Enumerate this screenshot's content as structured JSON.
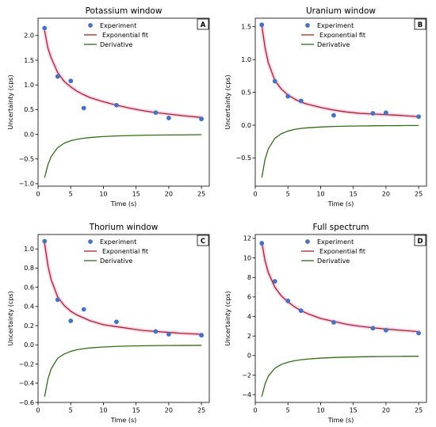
{
  "figure": {
    "legend_labels": [
      "Experiment",
      "Exponential fit",
      "Derivative"
    ],
    "colors": {
      "experiment": "#4472c4",
      "fit": "#a0281e",
      "fit_halo": "#ffd0f0",
      "derivative": "#2e6e14"
    }
  },
  "chart_data": [
    {
      "type": "line",
      "letter": "A",
      "title": "Potassium window",
      "xlabel": "Time (s)",
      "ylabel": "Uncertainty (cps)",
      "xlim": [
        0,
        26.2
      ],
      "ylim": [
        -1.05,
        2.35
      ],
      "xticks": [
        0,
        5,
        10,
        15,
        20,
        25
      ],
      "yticks": [
        -1.0,
        -0.5,
        0.0,
        0.5,
        1.0,
        1.5,
        2.0
      ],
      "ytick_labels": [
        "−1.0",
        "−0.5",
        "0.0",
        "0.5",
        "1.0",
        "1.5",
        "2.0"
      ],
      "grid": false,
      "legend": "top-center",
      "series": [
        {
          "name": "Experiment",
          "kind": "scatter",
          "x": [
            1,
            3,
            5,
            7,
            12,
            18,
            20,
            25
          ],
          "y": [
            2.15,
            1.17,
            1.08,
            0.53,
            0.59,
            0.44,
            0.33,
            0.31
          ]
        },
        {
          "name": "Exponential fit",
          "kind": "line",
          "x": [
            1,
            1.5,
            2,
            3,
            4,
            5,
            6,
            7,
            8,
            10,
            12,
            14,
            16,
            18,
            20,
            22,
            25
          ],
          "y": [
            2.1,
            1.75,
            1.55,
            1.25,
            1.07,
            0.96,
            0.87,
            0.8,
            0.74,
            0.66,
            0.59,
            0.53,
            0.48,
            0.44,
            0.41,
            0.38,
            0.34
          ]
        },
        {
          "name": "Derivative",
          "kind": "line",
          "x": [
            1,
            1.5,
            2,
            3,
            4,
            5,
            6,
            7,
            8,
            10,
            12,
            14,
            16,
            18,
            20,
            22,
            25
          ],
          "y": [
            -0.88,
            -0.62,
            -0.45,
            -0.27,
            -0.18,
            -0.13,
            -0.1,
            -0.08,
            -0.065,
            -0.045,
            -0.033,
            -0.025,
            -0.02,
            -0.016,
            -0.013,
            -0.011,
            -0.008
          ]
        }
      ]
    },
    {
      "type": "line",
      "letter": "B",
      "title": "Uranium window",
      "xlabel": "Time (s)",
      "ylabel": "Uncertainty (cps)",
      "xlim": [
        0,
        26.2
      ],
      "ylim": [
        -0.93,
        1.63
      ],
      "xticks": [
        0,
        5,
        10,
        15,
        20,
        25
      ],
      "yticks": [
        -0.5,
        0.0,
        0.5,
        1.0,
        1.5
      ],
      "ytick_labels": [
        "−0.5",
        "0.0",
        "0.5",
        "1.0",
        "1.5"
      ],
      "grid": false,
      "legend": "top-center",
      "series": [
        {
          "name": "Experiment",
          "kind": "scatter",
          "x": [
            1,
            3,
            5,
            7,
            12,
            18,
            20,
            25
          ],
          "y": [
            1.53,
            0.67,
            0.44,
            0.37,
            0.15,
            0.18,
            0.19,
            0.13
          ]
        },
        {
          "name": "Exponential fit",
          "kind": "line",
          "x": [
            1,
            1.5,
            2,
            3,
            4,
            5,
            6,
            7,
            8,
            10,
            12,
            14,
            16,
            18,
            20,
            22,
            25
          ],
          "y": [
            1.52,
            1.18,
            0.95,
            0.68,
            0.55,
            0.46,
            0.4,
            0.35,
            0.32,
            0.27,
            0.23,
            0.2,
            0.18,
            0.17,
            0.16,
            0.15,
            0.13
          ]
        },
        {
          "name": "Derivative",
          "kind": "line",
          "x": [
            1,
            1.5,
            2,
            3,
            4,
            5,
            6,
            7,
            8,
            10,
            12,
            14,
            16,
            18,
            20,
            22,
            25
          ],
          "y": [
            -0.8,
            -0.52,
            -0.36,
            -0.2,
            -0.13,
            -0.09,
            -0.065,
            -0.05,
            -0.04,
            -0.028,
            -0.02,
            -0.015,
            -0.012,
            -0.01,
            -0.008,
            -0.007,
            -0.005
          ]
        }
      ]
    },
    {
      "type": "line",
      "letter": "C",
      "title": "Thorium window",
      "xlabel": "Time (s)",
      "ylabel": "Uncertainty (cps)",
      "xlim": [
        0,
        26.2
      ],
      "ylim": [
        -0.6,
        1.15
      ],
      "xticks": [
        0,
        5,
        10,
        15,
        20,
        25
      ],
      "yticks": [
        -0.6,
        -0.4,
        -0.2,
        0.0,
        0.2,
        0.4,
        0.6,
        0.8,
        1.0
      ],
      "ytick_labels": [
        "−0.6",
        "−0.4",
        "−0.2",
        "0.0",
        "0.2",
        "0.4",
        "0.6",
        "0.8",
        "1.0"
      ],
      "grid": false,
      "legend": "top-center",
      "series": [
        {
          "name": "Experiment",
          "kind": "scatter",
          "x": [
            1,
            3,
            5,
            7,
            12,
            18,
            20,
            25
          ],
          "y": [
            1.08,
            0.47,
            0.25,
            0.37,
            0.24,
            0.14,
            0.11,
            0.1
          ]
        },
        {
          "name": "Exponential fit",
          "kind": "line",
          "x": [
            1,
            1.5,
            2,
            3,
            4,
            5,
            6,
            7,
            8,
            10,
            12,
            14,
            16,
            18,
            20,
            22,
            25
          ],
          "y": [
            1.06,
            0.83,
            0.68,
            0.5,
            0.41,
            0.35,
            0.31,
            0.28,
            0.25,
            0.21,
            0.19,
            0.17,
            0.15,
            0.14,
            0.13,
            0.12,
            0.11
          ]
        },
        {
          "name": "Derivative",
          "kind": "line",
          "x": [
            1,
            1.5,
            2,
            3,
            4,
            5,
            6,
            7,
            8,
            10,
            12,
            14,
            16,
            18,
            20,
            22,
            25
          ],
          "y": [
            -0.54,
            -0.36,
            -0.25,
            -0.14,
            -0.095,
            -0.068,
            -0.05,
            -0.04,
            -0.032,
            -0.022,
            -0.016,
            -0.012,
            -0.01,
            -0.008,
            -0.007,
            -0.006,
            -0.005
          ]
        }
      ]
    },
    {
      "type": "line",
      "letter": "D",
      "title": "Full spectrum",
      "xlabel": "Time (s)",
      "ylabel": "Uncertainty (cps)",
      "xlim": [
        0,
        26.2
      ],
      "ylim": [
        -4.8,
        12.4
      ],
      "xticks": [
        0,
        5,
        10,
        15,
        20,
        25
      ],
      "yticks": [
        -4,
        -2,
        0,
        2,
        4,
        6,
        8,
        10,
        12
      ],
      "ytick_labels": [
        "−4",
        "−2",
        "0",
        "2",
        "4",
        "6",
        "8",
        "10",
        "12"
      ],
      "grid": false,
      "legend": "top-center",
      "series": [
        {
          "name": "Experiment",
          "kind": "scatter",
          "x": [
            1,
            3,
            5,
            7,
            12,
            18,
            20,
            25
          ],
          "y": [
            11.5,
            7.6,
            5.6,
            4.6,
            3.4,
            2.8,
            2.6,
            2.3
          ]
        },
        {
          "name": "Exponential fit",
          "kind": "line",
          "x": [
            1,
            1.5,
            2,
            3,
            4,
            5,
            6,
            7,
            8,
            10,
            12,
            14,
            16,
            18,
            20,
            22,
            25
          ],
          "y": [
            11.6,
            9.7,
            8.5,
            7.0,
            6.1,
            5.5,
            5.0,
            4.6,
            4.3,
            3.8,
            3.5,
            3.2,
            3.0,
            2.85,
            2.72,
            2.6,
            2.45
          ]
        },
        {
          "name": "Derivative",
          "kind": "line",
          "x": [
            1,
            1.5,
            2,
            3,
            4,
            5,
            6,
            7,
            8,
            10,
            12,
            14,
            16,
            18,
            20,
            22,
            25
          ],
          "y": [
            -4.2,
            -2.9,
            -2.1,
            -1.3,
            -0.9,
            -0.68,
            -0.53,
            -0.43,
            -0.36,
            -0.26,
            -0.2,
            -0.16,
            -0.13,
            -0.11,
            -0.095,
            -0.082,
            -0.07
          ]
        }
      ]
    }
  ]
}
